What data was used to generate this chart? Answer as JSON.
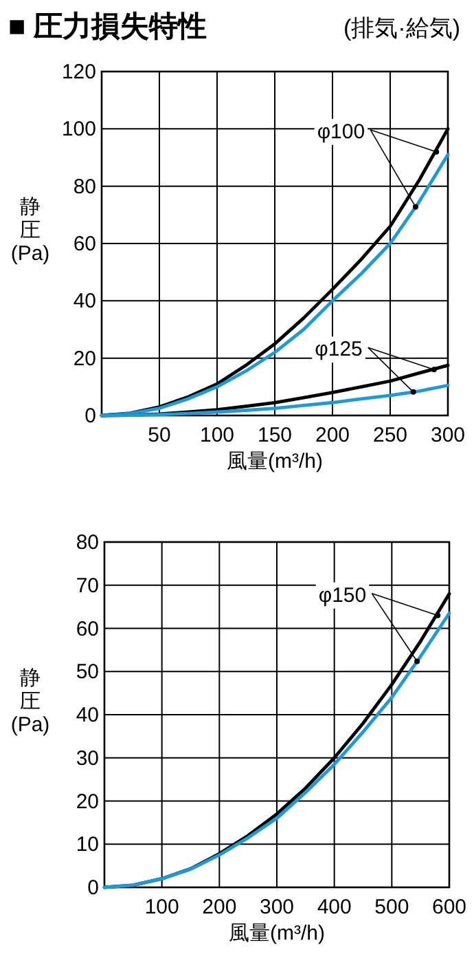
{
  "chart_data": [
    {
      "type": "line",
      "title": "■ 圧力損失特性",
      "subtitle": "(排気·給気)",
      "xlabel": "風量(m³/h)",
      "ylabel": "静圧(Pa)",
      "x": [
        0,
        25,
        50,
        75,
        100,
        125,
        150,
        175,
        200,
        225,
        250,
        275,
        300
      ],
      "xlim": [
        0,
        300
      ],
      "ylim": [
        0,
        120
      ],
      "xticks": [
        50,
        100,
        150,
        200,
        250,
        300
      ],
      "yticks": [
        0,
        20,
        40,
        60,
        80,
        100,
        120
      ],
      "grid": true,
      "series": [
        {
          "color": "#000000",
          "values": [
            0,
            0.8,
            3,
            6.5,
            11,
            17.5,
            25,
            34,
            44,
            54.5,
            66,
            82,
            100
          ]
        },
        {
          "color": "#1e9ad6",
          "values": [
            0,
            0.7,
            2.5,
            5.8,
            10,
            15.5,
            22,
            30,
            40,
            49.5,
            60,
            74.5,
            91
          ]
        },
        {
          "color": "#000000",
          "values": [
            0,
            0.1,
            0.5,
            1.2,
            2,
            3.2,
            4.5,
            6.2,
            8,
            10,
            12,
            14.8,
            17.5
          ]
        },
        {
          "color": "#1e9ad6",
          "values": [
            0,
            0.1,
            0.3,
            0.7,
            1.2,
            1.8,
            2.5,
            3.5,
            4.5,
            5.8,
            7,
            8.5,
            10.5
          ]
        }
      ],
      "annotations": [
        {
          "text": "φ100",
          "x": 290,
          "y": 92
        },
        {
          "text": "φ125",
          "x": 288,
          "y": 16
        }
      ]
    },
    {
      "type": "line",
      "xlabel": "風量(m³/h)",
      "ylabel": "静圧(Pa)",
      "x": [
        0,
        50,
        100,
        150,
        200,
        250,
        300,
        350,
        400,
        450,
        500,
        550,
        600
      ],
      "xlim": [
        0,
        600
      ],
      "ylim": [
        0,
        80
      ],
      "xticks": [
        100,
        200,
        300,
        400,
        500,
        600
      ],
      "yticks": [
        0,
        10,
        20,
        30,
        40,
        50,
        60,
        70,
        80
      ],
      "grid": true,
      "series": [
        {
          "color": "#000000",
          "values": [
            0,
            0.5,
            2,
            4.3,
            7.8,
            12,
            17,
            23,
            30,
            38,
            47,
            57,
            68
          ]
        },
        {
          "color": "#1e9ad6",
          "values": [
            0,
            0.5,
            2,
            4.2,
            7.5,
            11.5,
            16,
            22,
            28.5,
            36,
            44,
            53.5,
            63.5
          ]
        }
      ],
      "annotations": [
        {
          "text": "φ150",
          "x": 580,
          "y": 63
        }
      ]
    }
  ]
}
